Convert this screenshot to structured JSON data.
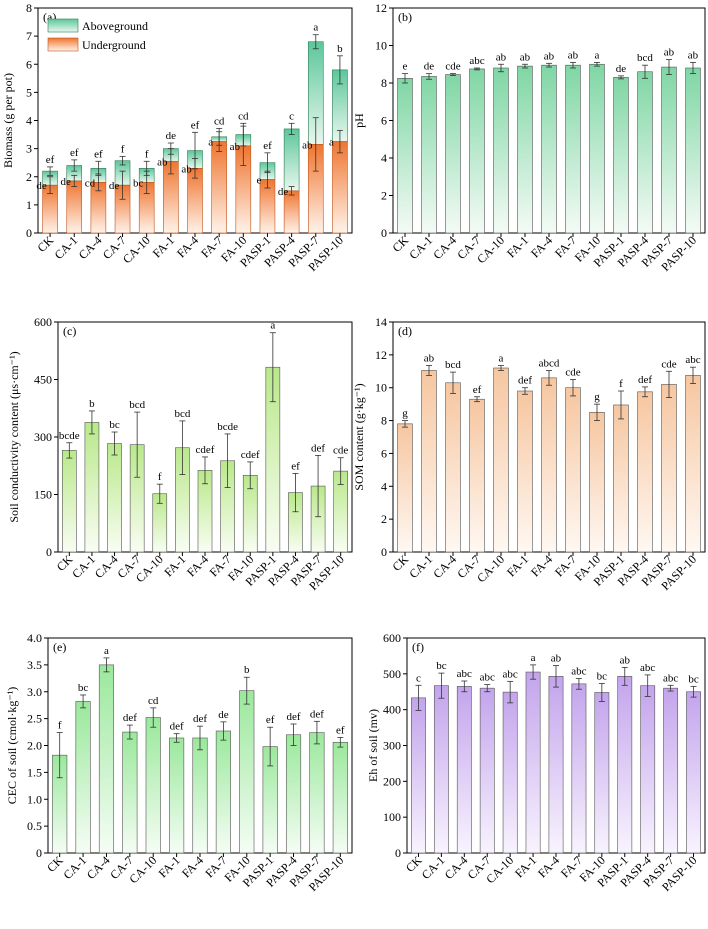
{
  "categories": [
    "CK",
    "CA-1",
    "CA-4",
    "CA-7",
    "CA-10",
    "FA-1",
    "FA-4",
    "FA-7",
    "FA-10",
    "PASP-1",
    "PASP-4",
    "PASP-7",
    "PASP-10"
  ],
  "colors": {
    "green_top": "#5cc79a",
    "green_bottom": "#e9f7ef",
    "orange_top": "#ef7530",
    "orange_bottom": "#fff3ea",
    "ph_top": "#7fd6a4",
    "ph_bottom": "#f4fbf6",
    "cond_top": "#b9e88a",
    "cond_bottom": "#f9fdf3",
    "som_top": "#f6c6a0",
    "som_bottom": "#fff8f2",
    "cec_top": "#9ae89b",
    "cec_bottom": "#f5fdf5",
    "eh_top": "#c3a4ec",
    "eh_bottom": "#f8f3fe"
  },
  "chart_data": [
    {
      "id": "a",
      "type": "bar",
      "stacked": true,
      "panel_label": "(a)",
      "ylabel": "Biomass (g per pot)",
      "ylim": [
        0,
        8
      ],
      "yticks": [
        "0",
        "1",
        "2",
        "3",
        "4",
        "5",
        "6",
        "7",
        "8"
      ],
      "legend": [
        "Aboveground",
        "Underground"
      ],
      "series": [
        {
          "name": "Underground",
          "values": [
            1.7,
            1.85,
            1.8,
            1.7,
            1.8,
            2.55,
            2.3,
            3.25,
            3.1,
            1.9,
            1.5,
            3.15,
            3.25
          ],
          "errors": [
            0.3,
            0.2,
            0.3,
            0.5,
            0.4,
            0.45,
            0.35,
            0.35,
            0.7,
            0.3,
            0.15,
            0.95,
            0.4
          ],
          "letters": [
            "de",
            "de",
            "cd",
            "de",
            "bc",
            "ab",
            "ab",
            "a",
            "ab",
            "e",
            "de",
            "ab",
            "a"
          ]
        },
        {
          "name": "Aboveground",
          "totals": [
            2.2,
            2.4,
            2.3,
            2.57,
            2.3,
            3.0,
            2.93,
            3.42,
            3.5,
            2.5,
            3.7,
            6.8,
            5.8
          ],
          "errors": [
            0.15,
            0.2,
            0.25,
            0.15,
            0.25,
            0.2,
            0.65,
            0.3,
            0.4,
            0.35,
            0.2,
            0.25,
            0.5
          ],
          "letters": [
            "ef",
            "ef",
            "ef",
            "f",
            "f",
            "de",
            "ef",
            "cd",
            "cd",
            "ef",
            "c",
            "a",
            "b"
          ]
        }
      ]
    },
    {
      "id": "b",
      "type": "bar",
      "panel_label": "(b)",
      "ylabel": "pH",
      "ylim": [
        0,
        12
      ],
      "yticks": [
        "0",
        "2",
        "4",
        "6",
        "8",
        "10",
        "12"
      ],
      "values": [
        8.25,
        8.35,
        8.45,
        8.75,
        8.8,
        8.9,
        8.95,
        8.95,
        9.0,
        8.3,
        8.6,
        8.85,
        8.8
      ],
      "errors": [
        0.25,
        0.15,
        0.05,
        0.05,
        0.2,
        0.1,
        0.1,
        0.15,
        0.1,
        0.08,
        0.35,
        0.4,
        0.3
      ],
      "letters": [
        "e",
        "de",
        "cde",
        "abc",
        "ab",
        "ab",
        "ab",
        "ab",
        "a",
        "de",
        "bcd",
        "ab",
        "ab"
      ]
    },
    {
      "id": "c",
      "type": "bar",
      "panel_label": "(c)",
      "ylabel": "Soil conductivity content  (μs·cm⁻¹)",
      "ylim": [
        0,
        600
      ],
      "yticks": [
        "0",
        "150",
        "300",
        "450",
        "600"
      ],
      "values": [
        265,
        338,
        283,
        280,
        152,
        272,
        213,
        238,
        200,
        482,
        155,
        172,
        211
      ],
      "errors": [
        20,
        30,
        30,
        85,
        25,
        70,
        35,
        70,
        35,
        90,
        50,
        80,
        35
      ],
      "letters": [
        "bcde",
        "b",
        "bc",
        "bcd",
        "f",
        "bcd",
        "cdef",
        "bcde",
        "cdef",
        "a",
        "ef",
        "def",
        "cde"
      ]
    },
    {
      "id": "d",
      "type": "bar",
      "panel_label": "(d)",
      "ylabel": "SOM content (g·kg⁻¹)",
      "ylim": [
        0,
        14
      ],
      "yticks": [
        "0",
        "2",
        "4",
        "6",
        "8",
        "10",
        "12",
        "14"
      ],
      "values": [
        7.8,
        11.05,
        10.3,
        9.3,
        11.2,
        9.8,
        10.6,
        10.0,
        8.5,
        8.95,
        9.75,
        10.2,
        10.75
      ],
      "errors": [
        0.2,
        0.3,
        0.65,
        0.15,
        0.15,
        0.2,
        0.45,
        0.5,
        0.5,
        0.85,
        0.3,
        0.8,
        0.5
      ],
      "letters": [
        "g",
        "ab",
        "bcd",
        "ef",
        "a",
        "def",
        "abcd",
        "cde",
        "g",
        "f",
        "def",
        "cde",
        "abc"
      ]
    },
    {
      "id": "e",
      "type": "bar",
      "panel_label": "(e)",
      "ylabel": "CEC of soil  (cmol·kg⁻¹)",
      "ylim": [
        0,
        4.0
      ],
      "yticks": [
        "0",
        "0.5",
        "1.0",
        "1.5",
        "2.0",
        "2.5",
        "3.0",
        "3.5",
        "4.0"
      ],
      "values": [
        1.82,
        2.82,
        3.5,
        2.25,
        2.52,
        2.14,
        2.14,
        2.27,
        3.02,
        1.98,
        2.2,
        2.24,
        2.06
      ],
      "errors": [
        0.42,
        0.12,
        0.13,
        0.13,
        0.18,
        0.08,
        0.22,
        0.17,
        0.25,
        0.36,
        0.2,
        0.21,
        0.09
      ],
      "letters": [
        "f",
        "bc",
        "a",
        "def",
        "cd",
        "def",
        "def",
        "de",
        "b",
        "ef",
        "def",
        "def",
        "ef"
      ]
    },
    {
      "id": "f",
      "type": "bar",
      "panel_label": "(f)",
      "ylabel": "Eh of soil  (mv)",
      "ylim": [
        0,
        600
      ],
      "yticks": [
        "0",
        "100",
        "200",
        "300",
        "400",
        "500",
        "600"
      ],
      "values": [
        433,
        467,
        465,
        460,
        449,
        505,
        493,
        472,
        448,
        493,
        467,
        460,
        450
      ],
      "errors": [
        35,
        35,
        15,
        10,
        30,
        20,
        30,
        15,
        25,
        25,
        30,
        8,
        15
      ],
      "letters": [
        "c",
        "bc",
        "abc",
        "abc",
        "abc",
        "a",
        "ab",
        "abc",
        "bc",
        "ab",
        "abc",
        "abc",
        "bc"
      ]
    }
  ]
}
